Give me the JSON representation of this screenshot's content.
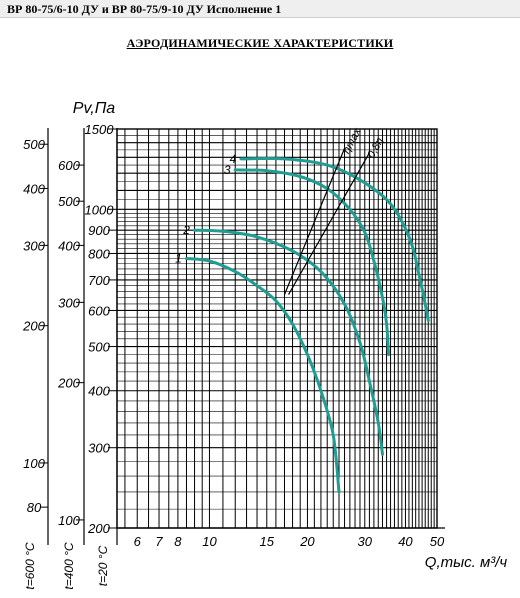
{
  "header": {
    "title": "ВР 80-75/6-10 ДУ и ВР 80-75/9-10 ДУ Исполнение 1"
  },
  "section": {
    "title": "АЭРОДИНАМИЧЕСКИЕ ХАРАКТЕРИСТИКИ"
  },
  "chart_data": {
    "type": "line",
    "title": "",
    "ylabel": "Pv,Па",
    "xlabel": "Q,тыс. м³/ч",
    "x_scale": "log",
    "y_scale": "log",
    "xlim": [
      5.2,
      50
    ],
    "ylim": [
      200,
      1500
    ],
    "x_ticks": [
      "6",
      "7",
      "8",
      "10",
      "15",
      "20",
      "30",
      "40",
      "50"
    ],
    "y_ticks": [
      "1500",
      "1000",
      "900",
      "800",
      "700",
      "600",
      "500",
      "400",
      "300",
      "200"
    ],
    "extra_scales": [
      {
        "name": "t=600 °C",
        "ticks": [
          "500",
          "400",
          "300",
          "200",
          "100",
          "80"
        ]
      },
      {
        "name": "t=400 °C",
        "ticks": [
          "600",
          "500",
          "400",
          "300",
          "200",
          "100",
          "80"
        ]
      },
      {
        "name": "t=20 °C",
        "ticks": [
          "1500",
          "1000",
          "900",
          "800",
          "700",
          "600",
          "500",
          "400",
          "300",
          "200"
        ]
      }
    ],
    "series": [
      {
        "name": "1",
        "points": [
          [
            8.5,
            780
          ],
          [
            10,
            770
          ],
          [
            12,
            730
          ],
          [
            14,
            680
          ],
          [
            16,
            630
          ],
          [
            18,
            560
          ],
          [
            20,
            480
          ],
          [
            22,
            400
          ],
          [
            24,
            320
          ],
          [
            25,
            240
          ]
        ]
      },
      {
        "name": "2",
        "points": [
          [
            9,
            900
          ],
          [
            11,
            895
          ],
          [
            14,
            870
          ],
          [
            18,
            810
          ],
          [
            22,
            730
          ],
          [
            26,
            620
          ],
          [
            29,
            510
          ],
          [
            31,
            420
          ],
          [
            33,
            340
          ],
          [
            34,
            290
          ]
        ]
      },
      {
        "name": "3",
        "points": [
          [
            12,
            1220
          ],
          [
            15,
            1215
          ],
          [
            19,
            1180
          ],
          [
            23,
            1110
          ],
          [
            27,
            1000
          ],
          [
            30,
            890
          ],
          [
            32,
            770
          ],
          [
            34,
            640
          ],
          [
            35,
            560
          ],
          [
            35.5,
            480
          ]
        ]
      },
      {
        "name": "4",
        "points": [
          [
            12.5,
            1290
          ],
          [
            17,
            1290
          ],
          [
            23,
            1250
          ],
          [
            29,
            1160
          ],
          [
            35,
            1050
          ],
          [
            39,
            940
          ],
          [
            42,
            830
          ],
          [
            44,
            720
          ],
          [
            46,
            620
          ],
          [
            47,
            570
          ]
        ]
      }
    ],
    "efficiency_lines": [
      {
        "label": "ηmax",
        "points": [
          [
            17,
            650
          ],
          [
            26,
            1360
          ]
        ]
      },
      {
        "label": "0,8η",
        "points": [
          [
            17.5,
            650
          ],
          [
            31,
            1330
          ]
        ]
      }
    ]
  }
}
